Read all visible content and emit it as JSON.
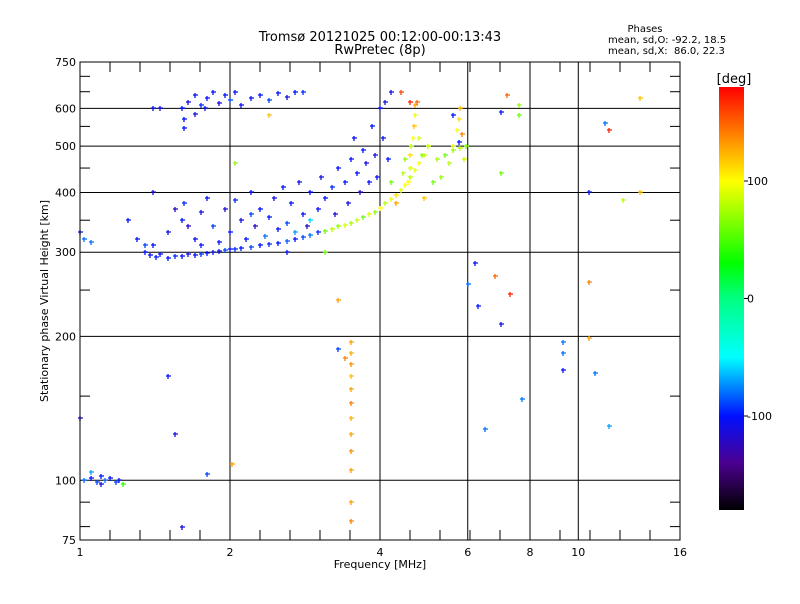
{
  "chart_data": {
    "type": "scatter",
    "title": "Tromsø 20121025 00:12:00-00:13:43",
    "subtitle": "RwPretec (8p)",
    "stats": {
      "heading": "Phases",
      "o_line": "mean, sd,O: -92.2, 18.5",
      "x_line": "mean, sd,X:  86.0, 22.3"
    },
    "xlabel": "Frequency [MHz]",
    "ylabel": "Stationary phase Virtual Height [km]",
    "xscale": "log",
    "yscale": "log",
    "xlim": [
      1,
      16
    ],
    "ylim": [
      75,
      750
    ],
    "xticks": [
      {
        "v": 1,
        "label": "1"
      },
      {
        "v": 2,
        "label": "2"
      },
      {
        "v": 4,
        "label": "4"
      },
      {
        "v": 6,
        "label": "6"
      },
      {
        "v": 8,
        "label": "8"
      },
      {
        "v": 10,
        "label": "10"
      },
      {
        "v": 16,
        "label": "16"
      }
    ],
    "yticks": [
      {
        "v": 75,
        "label": "75"
      },
      {
        "v": 100,
        "label": "100"
      },
      {
        "v": 200,
        "label": "200"
      },
      {
        "v": 300,
        "label": "300"
      },
      {
        "v": 400,
        "label": "400"
      },
      {
        "v": 500,
        "label": "500"
      },
      {
        "v": 600,
        "label": "600"
      },
      {
        "v": 750,
        "label": "750"
      }
    ],
    "xgrid": [
      2,
      4,
      6,
      8,
      10
    ],
    "ygrid": [
      100,
      200,
      300,
      400,
      500,
      600
    ],
    "colorbar": {
      "label": "[deg]",
      "range": [
        -180,
        180
      ],
      "ticks": [
        {
          "v": 100,
          "label": "100"
        },
        {
          "v": 0,
          "label": "0"
        },
        {
          "v": -100,
          "label": "-100"
        }
      ],
      "stops": [
        {
          "v": -180,
          "color": "#000000"
        },
        {
          "v": -140,
          "color": "#4b0090"
        },
        {
          "v": -100,
          "color": "#0010ff"
        },
        {
          "v": -50,
          "color": "#00ffff"
        },
        {
          "v": 0,
          "color": "#00ff80"
        },
        {
          "v": 30,
          "color": "#00ff00"
        },
        {
          "v": 100,
          "color": "#ffff00"
        },
        {
          "v": 140,
          "color": "#ff8000"
        },
        {
          "v": 180,
          "color": "#ff0000"
        }
      ]
    },
    "points_format": [
      "freq_MHz",
      "height_km",
      "phase_deg"
    ],
    "points": [
      [
        1.35,
        300,
        -100
      ],
      [
        1.38,
        296,
        -105
      ],
      [
        1.42,
        293,
        -98
      ],
      [
        1.45,
        298,
        -102
      ],
      [
        1.5,
        292,
        -100
      ],
      [
        1.55,
        295,
        -95
      ],
      [
        1.6,
        294,
        -100
      ],
      [
        1.65,
        297,
        -110
      ],
      [
        1.7,
        296,
        -100
      ],
      [
        1.75,
        298,
        -92
      ],
      [
        1.8,
        299,
        -100
      ],
      [
        1.85,
        300,
        -105
      ],
      [
        1.9,
        302,
        -100
      ],
      [
        1.95,
        303,
        -90
      ],
      [
        2.0,
        304,
        -100
      ],
      [
        2.05,
        305,
        -95
      ],
      [
        2.1,
        306,
        -100
      ],
      [
        2.2,
        308,
        -90
      ],
      [
        2.3,
        310,
        -100
      ],
      [
        2.4,
        312,
        -95
      ],
      [
        2.5,
        314,
        -100
      ],
      [
        2.6,
        317,
        -85
      ],
      [
        2.7,
        320,
        -100
      ],
      [
        2.8,
        323,
        -90
      ],
      [
        2.9,
        326,
        -80
      ],
      [
        3.0,
        330,
        -95
      ],
      [
        3.1,
        333,
        60
      ],
      [
        3.2,
        336,
        80
      ],
      [
        3.3,
        340,
        70
      ],
      [
        3.4,
        342,
        90
      ],
      [
        3.5,
        346,
        75
      ],
      [
        3.6,
        350,
        85
      ],
      [
        3.7,
        355,
        60
      ],
      [
        3.8,
        360,
        90
      ],
      [
        3.9,
        365,
        70
      ],
      [
        4.0,
        372,
        100
      ],
      [
        4.1,
        380,
        80
      ],
      [
        4.2,
        388,
        95
      ],
      [
        4.3,
        395,
        110
      ],
      [
        4.4,
        405,
        90
      ],
      [
        4.5,
        415,
        100
      ],
      [
        4.6,
        430,
        80
      ],
      [
        4.7,
        445,
        95
      ],
      [
        4.8,
        460,
        100
      ],
      [
        4.9,
        480,
        90
      ],
      [
        5.0,
        500,
        85
      ],
      [
        5.2,
        470,
        75
      ],
      [
        5.4,
        480,
        60
      ],
      [
        5.6,
        490,
        70
      ],
      [
        5.8,
        495,
        80
      ],
      [
        5.95,
        500,
        65
      ],
      [
        1.4,
        310,
        -100
      ],
      [
        1.5,
        330,
        -110
      ],
      [
        1.6,
        350,
        -100
      ],
      [
        1.62,
        380,
        -95
      ],
      [
        1.65,
        340,
        -120
      ],
      [
        1.7,
        320,
        -100
      ],
      [
        1.75,
        365,
        -110
      ],
      [
        1.8,
        390,
        -100
      ],
      [
        1.85,
        340,
        -90
      ],
      [
        1.9,
        315,
        -100
      ],
      [
        1.95,
        370,
        -115
      ],
      [
        2.0,
        330,
        -100
      ],
      [
        2.05,
        385,
        -95
      ],
      [
        2.1,
        350,
        -110
      ],
      [
        2.15,
        320,
        -100
      ],
      [
        2.2,
        400,
        -100
      ],
      [
        2.25,
        340,
        -120
      ],
      [
        2.3,
        370,
        -100
      ],
      [
        2.35,
        325,
        -80
      ],
      [
        2.4,
        355,
        -100
      ],
      [
        2.45,
        390,
        -110
      ],
      [
        2.5,
        335,
        -100
      ],
      [
        2.55,
        410,
        -100
      ],
      [
        2.6,
        345,
        -90
      ],
      [
        2.65,
        380,
        -100
      ],
      [
        2.7,
        330,
        -70
      ],
      [
        2.75,
        420,
        -110
      ],
      [
        2.8,
        360,
        -100
      ],
      [
        2.85,
        340,
        -120
      ],
      [
        2.9,
        400,
        -100
      ],
      [
        3.0,
        370,
        -100
      ],
      [
        3.05,
        430,
        -110
      ],
      [
        3.1,
        390,
        -100
      ],
      [
        3.2,
        410,
        -95
      ],
      [
        3.25,
        360,
        -110
      ],
      [
        3.3,
        450,
        -100
      ],
      [
        3.4,
        420,
        -100
      ],
      [
        3.45,
        380,
        -110
      ],
      [
        3.5,
        470,
        -100
      ],
      [
        3.55,
        520,
        -105
      ],
      [
        3.6,
        440,
        -100
      ],
      [
        3.65,
        400,
        -120
      ],
      [
        3.7,
        490,
        -100
      ],
      [
        3.75,
        460,
        -110
      ],
      [
        3.8,
        420,
        -100
      ],
      [
        3.85,
        550,
        -100
      ],
      [
        3.9,
        480,
        -110
      ],
      [
        3.95,
        430,
        -100
      ],
      [
        4.0,
        600,
        -105
      ],
      [
        4.05,
        520,
        -100
      ],
      [
        4.1,
        620,
        -110
      ],
      [
        4.15,
        470,
        -100
      ],
      [
        1.3,
        320,
        -100
      ],
      [
        1.35,
        310,
        -90
      ],
      [
        1.55,
        370,
        -120
      ],
      [
        1.75,
        310,
        -100
      ],
      [
        2.2,
        360,
        -90
      ],
      [
        2.6,
        300,
        -100
      ],
      [
        2.9,
        350,
        -60
      ],
      [
        1.6,
        600,
        -100
      ],
      [
        1.65,
        620,
        -110
      ],
      [
        1.7,
        640,
        -100
      ],
      [
        1.75,
        610,
        -95
      ],
      [
        1.8,
        630,
        -100
      ],
      [
        1.85,
        650,
        -100
      ],
      [
        1.9,
        615,
        -110
      ],
      [
        1.95,
        640,
        -100
      ],
      [
        2.0,
        625,
        -90
      ],
      [
        2.05,
        650,
        -100
      ],
      [
        2.1,
        610,
        -105
      ],
      [
        1.62,
        570,
        -100
      ],
      [
        1.7,
        585,
        -110
      ],
      [
        1.78,
        600,
        -100
      ],
      [
        2.3,
        640,
        -100
      ],
      [
        2.4,
        625,
        -90
      ],
      [
        2.5,
        645,
        -100
      ],
      [
        2.6,
        635,
        -110
      ],
      [
        2.7,
        650,
        -100
      ],
      [
        2.8,
        648,
        -95
      ],
      [
        1.62,
        545,
        -100
      ],
      [
        1.4,
        600,
        -100
      ],
      [
        1.45,
        600,
        -110
      ],
      [
        2.2,
        630,
        -100
      ],
      [
        4.55,
        420,
        100
      ],
      [
        4.6,
        450,
        90
      ],
      [
        4.6,
        480,
        110
      ],
      [
        4.62,
        500,
        80
      ],
      [
        4.65,
        520,
        100
      ],
      [
        4.68,
        550,
        120
      ],
      [
        4.7,
        580,
        95
      ],
      [
        4.7,
        610,
        130
      ],
      [
        4.75,
        620,
        150
      ],
      [
        4.5,
        470,
        70
      ],
      [
        4.45,
        440,
        80
      ],
      [
        4.8,
        520,
        90
      ],
      [
        4.85,
        480,
        70
      ],
      [
        5.5,
        460,
        80
      ],
      [
        5.6,
        500,
        90
      ],
      [
        5.7,
        540,
        100
      ],
      [
        5.75,
        570,
        110
      ],
      [
        5.8,
        600,
        120
      ],
      [
        5.9,
        470,
        85
      ],
      [
        5.3,
        430,
        70
      ],
      [
        5.1,
        420,
        60
      ],
      [
        5.85,
        530,
        140
      ],
      [
        5.75,
        510,
        -100
      ],
      [
        5.6,
        580,
        -100
      ],
      [
        4.3,
        380,
        130
      ],
      [
        4.9,
        390,
        120
      ],
      [
        4.2,
        420,
        60
      ],
      [
        3.5,
        195,
        130
      ],
      [
        3.5,
        185,
        125
      ],
      [
        3.5,
        175,
        135
      ],
      [
        3.5,
        165,
        120
      ],
      [
        3.5,
        155,
        130
      ],
      [
        3.5,
        145,
        140
      ],
      [
        3.5,
        135,
        125
      ],
      [
        3.5,
        125,
        130
      ],
      [
        3.5,
        115,
        135
      ],
      [
        3.5,
        105,
        130
      ],
      [
        3.5,
        90,
        130
      ],
      [
        3.5,
        82,
        140
      ],
      [
        4.4,
        650,
        160
      ],
      [
        4.6,
        620,
        170
      ],
      [
        7.2,
        640,
        150
      ],
      [
        7.6,
        610,
        70
      ],
      [
        7.6,
        580,
        60
      ],
      [
        7.0,
        590,
        -100
      ],
      [
        7.0,
        440,
        60
      ],
      [
        6.2,
        285,
        -100
      ],
      [
        6.0,
        258,
        -80
      ],
      [
        6.3,
        232,
        -100
      ],
      [
        6.8,
        268,
        150
      ],
      [
        7.3,
        245,
        170
      ],
      [
        7.0,
        212,
        -110
      ],
      [
        7.7,
        148,
        -80
      ],
      [
        6.5,
        128,
        -80
      ],
      [
        9.3,
        195,
        -80
      ],
      [
        9.3,
        185,
        -80
      ],
      [
        9.3,
        170,
        -100
      ],
      [
        10.5,
        198,
        130
      ],
      [
        10.8,
        168,
        -80
      ],
      [
        11.3,
        560,
        -80
      ],
      [
        11.5,
        540,
        170
      ],
      [
        13.3,
        630,
        120
      ],
      [
        13.3,
        400,
        120
      ],
      [
        11.5,
        130,
        -70
      ],
      [
        10.5,
        260,
        140
      ],
      [
        10.5,
        400,
        -100
      ],
      [
        12.3,
        385,
        80
      ],
      [
        1.0,
        135,
        -110
      ],
      [
        1.5,
        165,
        -100
      ],
      [
        1.55,
        125,
        -110
      ],
      [
        1.6,
        80,
        -110
      ],
      [
        1.8,
        103,
        -90
      ],
      [
        2.02,
        108,
        130
      ],
      [
        2.05,
        460,
        70
      ],
      [
        2.4,
        580,
        120
      ],
      [
        3.1,
        300,
        60
      ],
      [
        3.3,
        238,
        130
      ],
      [
        3.3,
        188,
        -90
      ],
      [
        3.4,
        180,
        140
      ],
      [
        1.25,
        350,
        -100
      ],
      [
        1.02,
        320,
        -80
      ],
      [
        1.05,
        315,
        -80
      ],
      [
        1.0,
        330,
        -100
      ],
      [
        1.4,
        400,
        -110
      ],
      [
        4.2,
        650,
        -110
      ],
      [
        1.02,
        100,
        -80
      ],
      [
        1.05,
        101,
        -100
      ],
      [
        1.08,
        99,
        -90
      ],
      [
        1.1,
        102,
        -100
      ],
      [
        1.12,
        100,
        -80
      ],
      [
        1.15,
        101,
        -100
      ],
      [
        1.18,
        99,
        -90
      ],
      [
        1.2,
        100,
        -100
      ],
      [
        1.22,
        98,
        40
      ],
      [
        1.05,
        104,
        -70
      ],
      [
        1.1,
        98,
        -110
      ]
    ]
  }
}
